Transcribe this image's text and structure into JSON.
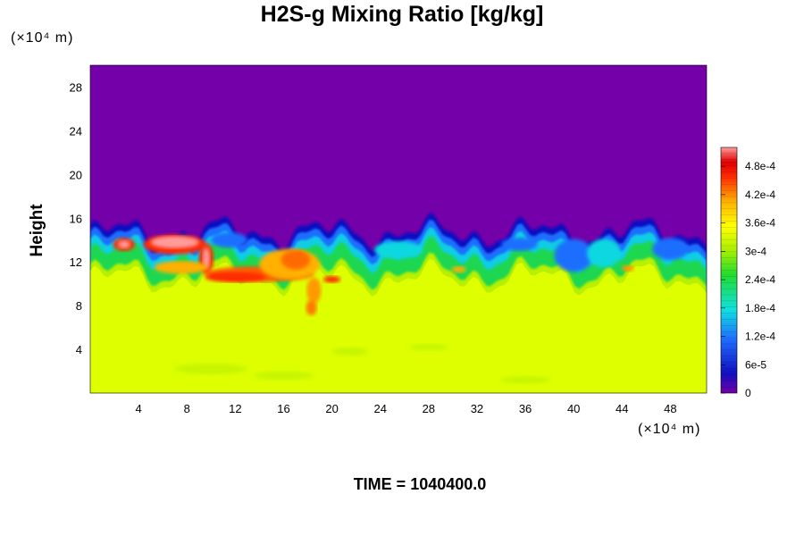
{
  "chart_data": {
    "type": "heatmap",
    "title": "H2S-g Mixing Ratio [kg/kg]",
    "xlabel": "",
    "ylabel": "Height",
    "x_units_label": "(×10⁴ m)",
    "y_units_label": "(×10⁴ m)",
    "xlim": [
      0,
      51
    ],
    "ylim": [
      0,
      30
    ],
    "x_ticks": [
      4,
      8,
      12,
      16,
      20,
      24,
      28,
      32,
      36,
      40,
      44,
      48
    ],
    "y_ticks": [
      4,
      8,
      12,
      16,
      20,
      24,
      28
    ],
    "x_tick_labels": [
      "4",
      "8",
      "12",
      "16",
      "20",
      "24",
      "28",
      "32",
      "36",
      "40",
      "44",
      "48"
    ],
    "y_tick_labels": [
      "4",
      "8",
      "12",
      "16",
      "20",
      "24",
      "28"
    ],
    "colorbar": {
      "min": 0,
      "max": 0.00052,
      "tick_values": [
        0,
        6e-05,
        0.00012,
        0.00018,
        0.00024,
        0.0003,
        0.00036,
        0.00042,
        0.00048
      ],
      "tick_labels": [
        "0",
        "6e-5",
        "1.2e-4",
        "1.8e-4",
        "2.4e-4",
        "3e-4",
        "3.6e-4",
        "4.2e-4",
        "4.8e-4"
      ]
    },
    "field_description_values": {
      "upper_region_value": 0,
      "lower_region_value": 0.00034,
      "lower_region_top_height": 10.5,
      "mixing_layer_height_range": [
        10.5,
        15
      ],
      "peak_value": 0.0005
    }
  },
  "time_label": "TIME = 1040400.0",
  "colors": {
    "background_field": "#7300a8",
    "lower_field": "#ddff00"
  }
}
